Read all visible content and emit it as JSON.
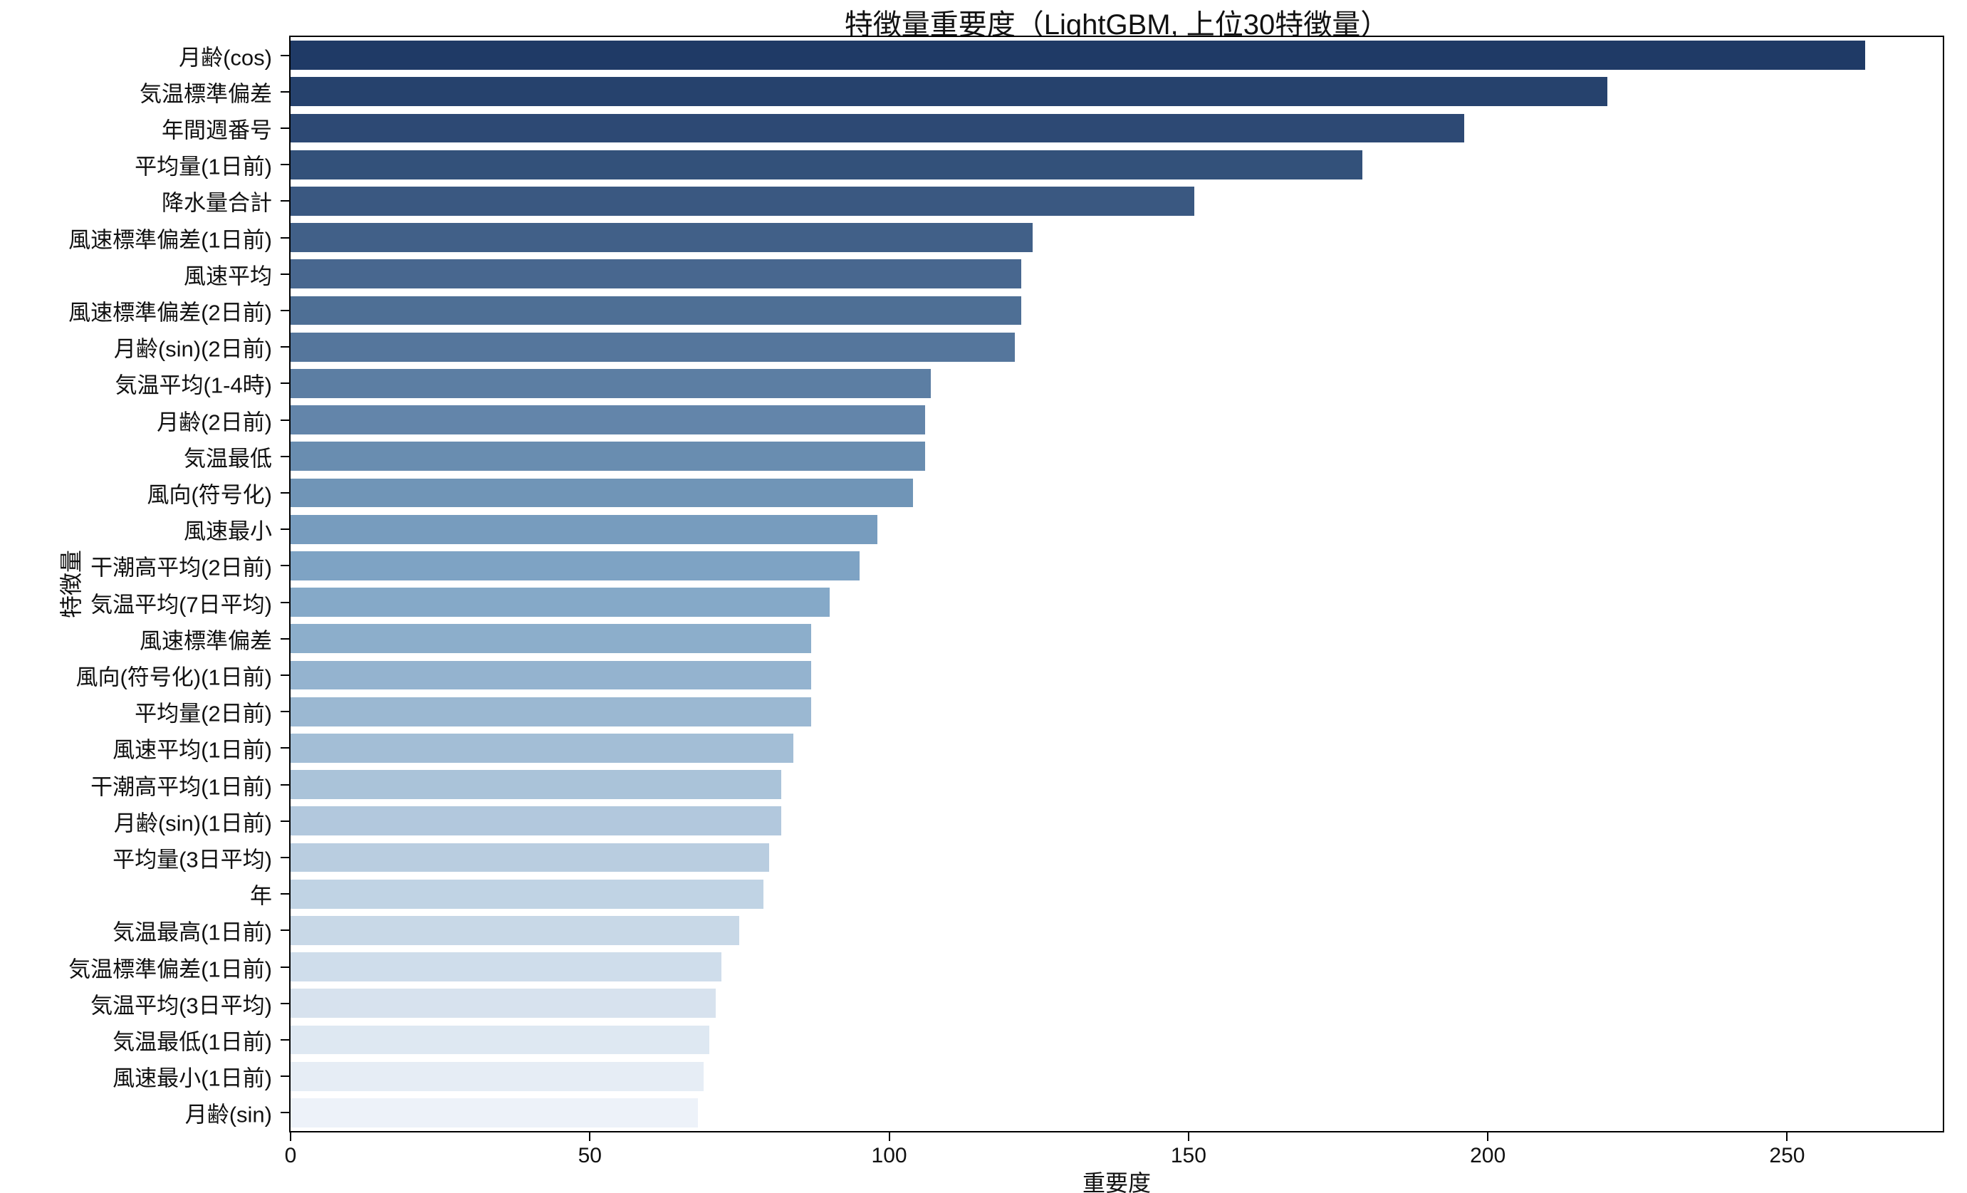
{
  "title": "特徴量重要度（LightGBM, 上位30特徴量）",
  "chart_data": {
    "type": "bar",
    "orientation": "horizontal",
    "title": "特徴量重要度（LightGBM, 上位30特徴量）",
    "xlabel": "重要度",
    "ylabel": "特徴量",
    "xlim": [
      0,
      276
    ],
    "xticks": [
      0,
      50,
      100,
      150,
      200,
      250
    ],
    "grid": false,
    "legend": "none",
    "categories": [
      "月齢(cos)",
      "気温標準偏差",
      "年間週番号",
      "平均量(1日前)",
      "降水量合計",
      "風速標準偏差(1日前)",
      "風速平均",
      "風速標準偏差(2日前)",
      "月齢(sin)(2日前)",
      "気温平均(1-4時)",
      "月齢(2日前)",
      "気温最低",
      "風向(符号化)",
      "風速最小",
      "干潮高平均(2日前)",
      "気温平均(7日平均)",
      "風速標準偏差",
      "風向(符号化)(1日前)",
      "平均量(2日前)",
      "風速平均(1日前)",
      "干潮高平均(1日前)",
      "月齢(sin)(1日前)",
      "平均量(3日平均)",
      "年",
      "気温最高(1日前)",
      "気温標準偏差(1日前)",
      "気温平均(3日平均)",
      "気温最低(1日前)",
      "風速最小(1日前)",
      "月齢(sin)"
    ],
    "values": [
      263,
      220,
      196,
      179,
      151,
      124,
      122,
      122,
      121,
      107,
      106,
      106,
      104,
      98,
      95,
      90,
      87,
      87,
      87,
      84,
      82,
      82,
      80,
      79,
      75,
      72,
      71,
      70,
      69,
      68
    ],
    "colors": {
      "bar_gradient_stops": [
        {
          "t": 0.0,
          "color": "#1f3a66"
        },
        {
          "t": 0.48,
          "color": "#7da3c4"
        },
        {
          "t": 1.0,
          "color": "#edf2f9"
        }
      ],
      "axis_color": "#000000",
      "text_color": "#111111",
      "background": "#ffffff"
    }
  }
}
